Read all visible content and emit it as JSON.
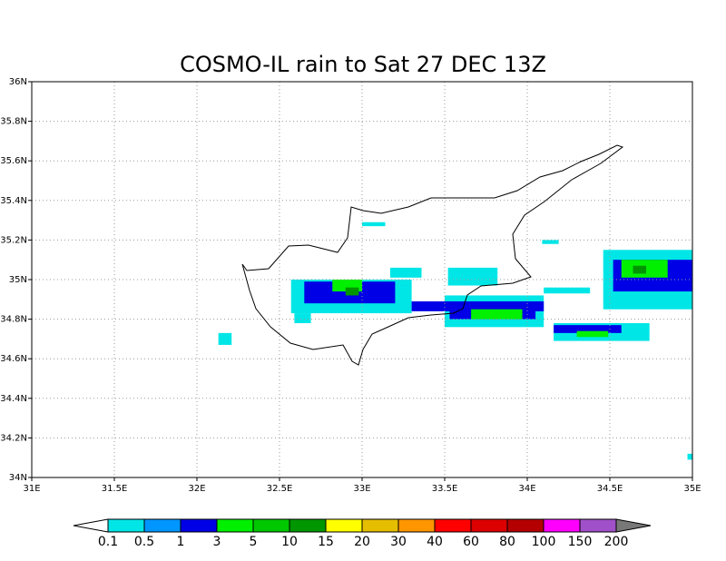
{
  "map": {
    "type": "rain-map",
    "title": "COSMO-IL rain to Sat 27 DEC 13Z",
    "xlim": [
      31,
      35
    ],
    "ylim": [
      34,
      36
    ],
    "xticks": [
      {
        "value": 31,
        "label": "31E"
      },
      {
        "value": 31.5,
        "label": "31.5E"
      },
      {
        "value": 32,
        "label": "32E"
      },
      {
        "value": 32.5,
        "label": "32.5E"
      },
      {
        "value": 33,
        "label": "33E"
      },
      {
        "value": 33.5,
        "label": "33.5E"
      },
      {
        "value": 34,
        "label": "34E"
      },
      {
        "value": 34.5,
        "label": "34.5E"
      },
      {
        "value": 35,
        "label": "35E"
      }
    ],
    "yticks": [
      {
        "value": 34,
        "label": "34N"
      },
      {
        "value": 34.2,
        "label": "34.2N"
      },
      {
        "value": 34.4,
        "label": "34.4N"
      },
      {
        "value": 34.6,
        "label": "34.6N"
      },
      {
        "value": 34.8,
        "label": "34.8N"
      },
      {
        "value": 35,
        "label": "35N"
      },
      {
        "value": 35.2,
        "label": "35.2N"
      },
      {
        "value": 35.4,
        "label": "35.4N"
      },
      {
        "value": 35.6,
        "label": "35.6N"
      },
      {
        "value": 35.8,
        "label": "35.8N"
      },
      {
        "value": 36,
        "label": "36N"
      }
    ],
    "grid": true,
    "colorbar": {
      "levels": [
        0.1,
        0.5,
        1,
        3,
        5,
        10,
        15,
        20,
        30,
        40,
        60,
        80,
        100,
        150,
        200
      ],
      "colors": [
        "#ffffff",
        "#00e6e6",
        "#0096ff",
        "#0000e6",
        "#00f000",
        "#00c800",
        "#009600",
        "#ffff00",
        "#e6be00",
        "#ff9600",
        "#ff0000",
        "#dc0000",
        "#b40000",
        "#ff00ff",
        "#a050c8",
        "#787878"
      ]
    },
    "cells": [
      {
        "lon": [
          32.57,
          33.3
        ],
        "lat": [
          34.83,
          35.0
        ],
        "rain": 0.1
      },
      {
        "lon": [
          33.17,
          33.36
        ],
        "lat": [
          35.01,
          35.06
        ],
        "rain": 0.1
      },
      {
        "lon": [
          33.5,
          34.1
        ],
        "lat": [
          34.76,
          34.92
        ],
        "rain": 0.1
      },
      {
        "lon": [
          33.52,
          33.82
        ],
        "lat": [
          34.97,
          35.06
        ],
        "rain": 0.1
      },
      {
        "lon": [
          34.1,
          34.38
        ],
        "lat": [
          34.93,
          34.96
        ],
        "rain": 0.1
      },
      {
        "lon": [
          34.16,
          34.74
        ],
        "lat": [
          34.69,
          34.78
        ],
        "rain": 0.1
      },
      {
        "lon": [
          34.46,
          35.0
        ],
        "lat": [
          34.85,
          35.15
        ],
        "rain": 0.1
      },
      {
        "lon": [
          33.0,
          33.14
        ],
        "lat": [
          35.27,
          35.29
        ],
        "rain": 0.1
      },
      {
        "lon": [
          34.09,
          34.19
        ],
        "lat": [
          35.18,
          35.2
        ],
        "rain": 0.1
      },
      {
        "lon": [
          32.13,
          32.21
        ],
        "lat": [
          34.67,
          34.73
        ],
        "rain": 0.1
      },
      {
        "lon": [
          32.59,
          32.69
        ],
        "lat": [
          34.78,
          34.83
        ],
        "rain": 0.1
      },
      {
        "lon": [
          34.97,
          35.0
        ],
        "lat": [
          34.09,
          34.12
        ],
        "rain": 0.1
      },
      {
        "lon": [
          32.65,
          33.2
        ],
        "lat": [
          34.88,
          34.99
        ],
        "rain": 1
      },
      {
        "lon": [
          33.3,
          34.1
        ],
        "lat": [
          34.84,
          34.89
        ],
        "rain": 1
      },
      {
        "lon": [
          33.53,
          34.05
        ],
        "lat": [
          34.8,
          34.86
        ],
        "rain": 1
      },
      {
        "lon": [
          34.16,
          34.57
        ],
        "lat": [
          34.73,
          34.77
        ],
        "rain": 1
      },
      {
        "lon": [
          34.52,
          35.0
        ],
        "lat": [
          34.94,
          35.1
        ],
        "rain": 1
      },
      {
        "lon": [
          32.82,
          33.0
        ],
        "lat": [
          34.94,
          35.0
        ],
        "rain": 3
      },
      {
        "lon": [
          33.66,
          33.97
        ],
        "lat": [
          34.8,
          34.85
        ],
        "rain": 3
      },
      {
        "lon": [
          34.3,
          34.49
        ],
        "lat": [
          34.71,
          34.74
        ],
        "rain": 3
      },
      {
        "lon": [
          34.57,
          34.85
        ],
        "lat": [
          35.01,
          35.1
        ],
        "rain": 3
      },
      {
        "lon": [
          32.9,
          32.98
        ],
        "lat": [
          34.92,
          34.96
        ],
        "rain": 10
      },
      {
        "lon": [
          34.64,
          34.72
        ],
        "lat": [
          35.03,
          35.07
        ],
        "rain": 10
      }
    ]
  }
}
